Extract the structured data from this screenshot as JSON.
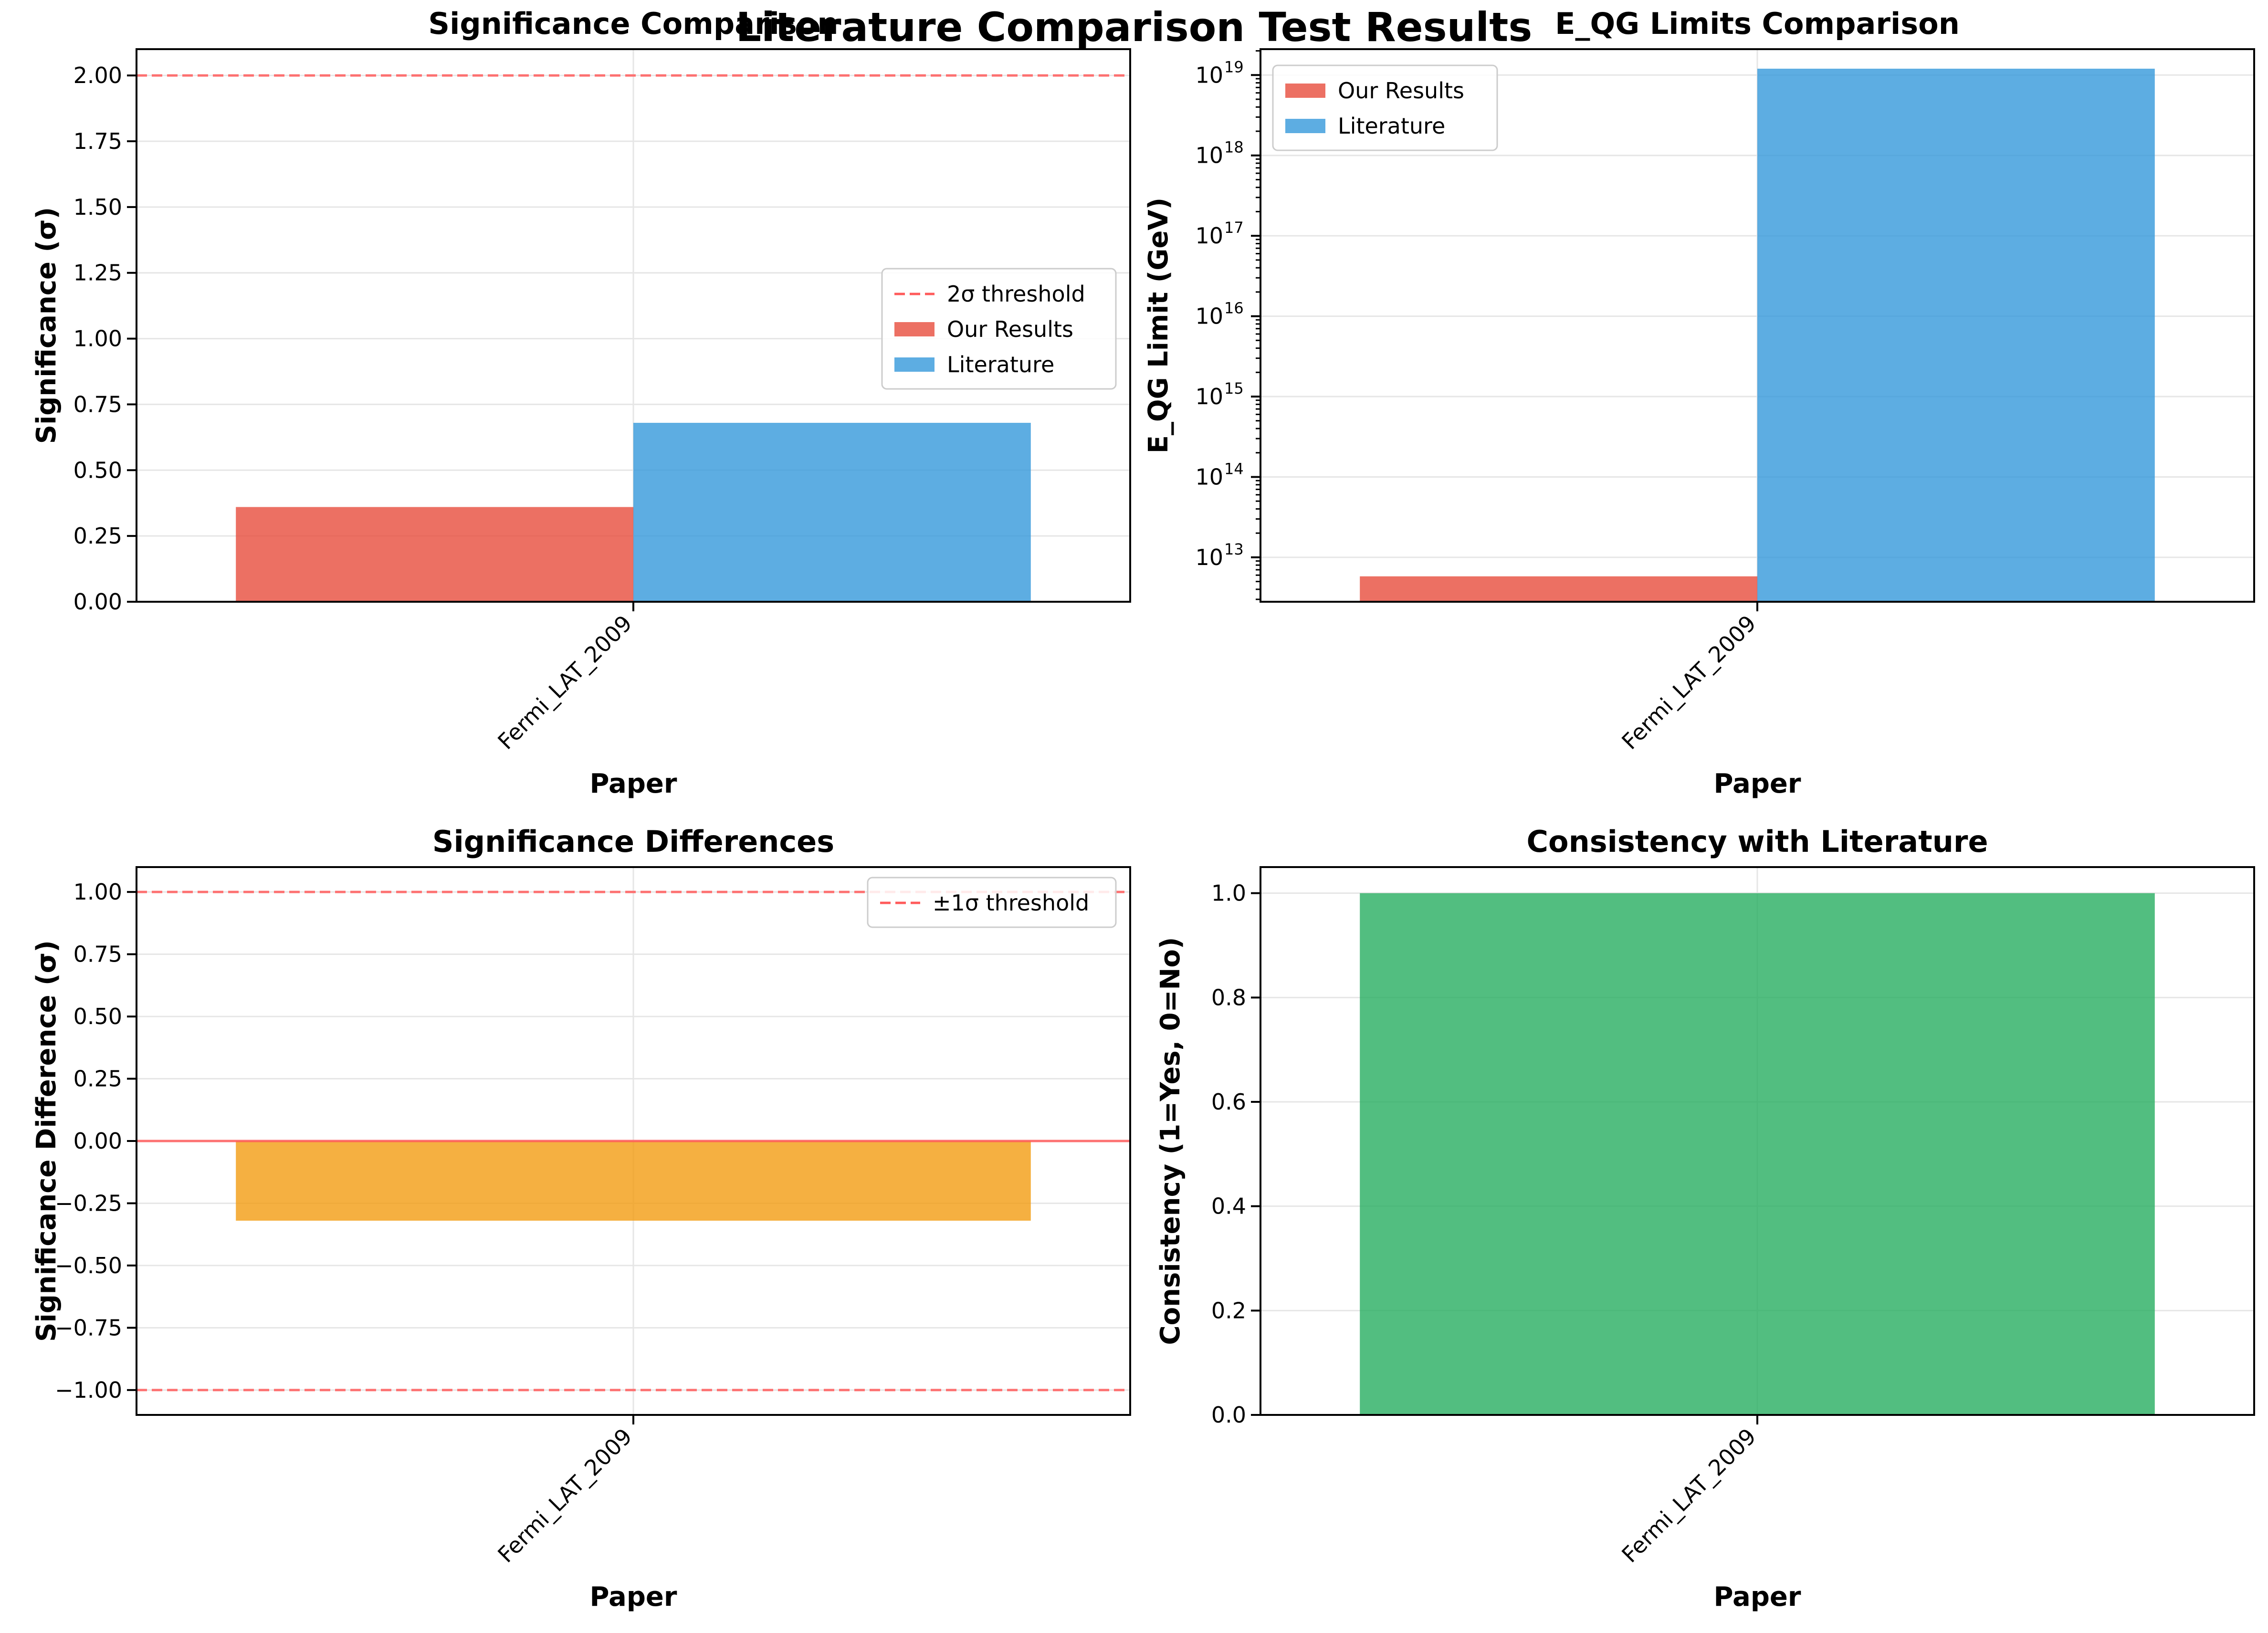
{
  "figure": {
    "suptitle": "Literature Comparison Test Results"
  },
  "colors": {
    "ours": "#e74c3c",
    "literature": "#3498db",
    "difference": "#f39c12",
    "consistency": "#27ae60",
    "threshold": "#ff5a5a",
    "grid": "#e6e6e6"
  },
  "chart_data": [
    {
      "type": "bar",
      "title": "Significance Comparison",
      "xlabel": "Paper",
      "ylabel": "Significance (σ)",
      "categories": [
        "Fermi_LAT_2009"
      ],
      "series": [
        {
          "name": "Our Results",
          "values": [
            0.36
          ],
          "color": "#e74c3c"
        },
        {
          "name": "Literature",
          "values": [
            0.68
          ],
          "color": "#3498db"
        }
      ],
      "reference_lines": [
        {
          "y": 2.0,
          "label": "2σ threshold",
          "style": "dashed"
        }
      ],
      "ylim": [
        0,
        2.1
      ],
      "yticks": [
        0,
        0.25,
        0.5,
        0.75,
        1.0,
        1.25,
        1.5,
        1.75,
        2.0
      ],
      "ytick_labels": [
        "0.00",
        "0.25",
        "0.50",
        "0.75",
        "1.00",
        "1.25",
        "1.50",
        "1.75",
        "2.00"
      ],
      "xtick_rotation": 45,
      "legend": {
        "loc": "center-right",
        "entries": [
          "2σ threshold",
          "Our Results",
          "Literature"
        ]
      },
      "grid": true
    },
    {
      "type": "bar",
      "title": "E_QG Limits Comparison",
      "xlabel": "Paper",
      "ylabel": "E_QG Limit (GeV)",
      "yscale": "log",
      "categories": [
        "Fermi_LAT_2009"
      ],
      "series": [
        {
          "name": "Our Results",
          "values": [
            5800000000000.0
          ],
          "color": "#e74c3c"
        },
        {
          "name": "Literature",
          "values": [
            1.2e+19
          ],
          "color": "#3498db"
        }
      ],
      "ylim": [
        2800000000000.0,
        2.1e+19
      ],
      "yticks": [
        13,
        14,
        15,
        16,
        17,
        18,
        19
      ],
      "ytick_labels": [
        "10",
        "10",
        "10",
        "10",
        "10",
        "10",
        "10"
      ],
      "ytick_exponents": [
        "13",
        "14",
        "15",
        "16",
        "17",
        "18",
        "19"
      ],
      "xtick_rotation": 45,
      "legend": {
        "loc": "upper-left",
        "entries": [
          "Our Results",
          "Literature"
        ]
      },
      "grid": true
    },
    {
      "type": "bar",
      "title": "Significance Differences",
      "xlabel": "Paper",
      "ylabel": "Significance Difference (σ)",
      "categories": [
        "Fermi_LAT_2009"
      ],
      "series": [
        {
          "name": "",
          "values": [
            -0.32
          ],
          "color": "#f39c12"
        }
      ],
      "reference_lines": [
        {
          "y": 1.0,
          "label": "±1σ threshold",
          "style": "dashed"
        },
        {
          "y": -1.0,
          "label": "",
          "style": "dashed"
        },
        {
          "y": 0.0,
          "label": "",
          "style": "solid"
        }
      ],
      "ylim": [
        -1.1,
        1.1
      ],
      "yticks": [
        -1.0,
        -0.75,
        -0.5,
        -0.25,
        0,
        0.25,
        0.5,
        0.75,
        1.0
      ],
      "ytick_labels": [
        "−1.00",
        "−0.75",
        "−0.50",
        "−0.25",
        "0.00",
        "0.25",
        "0.50",
        "0.75",
        "1.00"
      ],
      "xtick_rotation": 45,
      "legend": {
        "loc": "upper-right",
        "entries": [
          "±1σ threshold"
        ]
      },
      "grid": true
    },
    {
      "type": "bar",
      "title": "Consistency with Literature",
      "xlabel": "Paper",
      "ylabel": "Consistency (1=Yes, 0=No)",
      "categories": [
        "Fermi_LAT_2009"
      ],
      "series": [
        {
          "name": "",
          "values": [
            1.0
          ],
          "color": "#27ae60"
        }
      ],
      "ylim": [
        0,
        1.05
      ],
      "yticks": [
        0,
        0.2,
        0.4,
        0.6,
        0.8,
        1.0
      ],
      "ytick_labels": [
        "0.0",
        "0.2",
        "0.4",
        "0.6",
        "0.8",
        "1.0"
      ],
      "xtick_rotation": 45,
      "grid": true
    }
  ]
}
